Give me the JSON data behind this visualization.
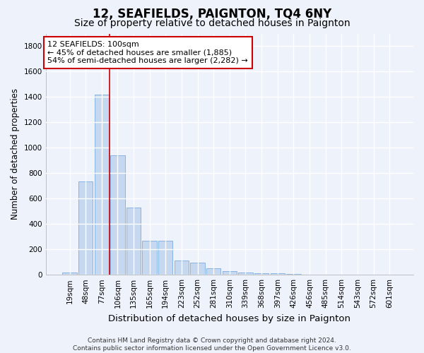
{
  "title": "12, SEAFIELDS, PAIGNTON, TQ4 6NY",
  "subtitle": "Size of property relative to detached houses in Paignton",
  "xlabel": "Distribution of detached houses by size in Paignton",
  "ylabel": "Number of detached properties",
  "categories": [
    "19sqm",
    "48sqm",
    "77sqm",
    "106sqm",
    "135sqm",
    "165sqm",
    "194sqm",
    "223sqm",
    "252sqm",
    "281sqm",
    "310sqm",
    "339sqm",
    "368sqm",
    "397sqm",
    "426sqm",
    "456sqm",
    "485sqm",
    "514sqm",
    "543sqm",
    "572sqm",
    "601sqm"
  ],
  "values": [
    20,
    735,
    1420,
    940,
    530,
    270,
    270,
    110,
    93,
    50,
    27,
    20,
    14,
    14,
    5,
    3,
    2,
    1,
    0,
    0,
    0
  ],
  "bar_color": "#c5d8f0",
  "bar_edge_color": "#7aabe0",
  "vline_x": 2.5,
  "vline_color": "#cc0000",
  "annotation_text": "12 SEAFIELDS: 100sqm\n← 45% of detached houses are smaller (1,885)\n54% of semi-detached houses are larger (2,282) →",
  "annotation_box_color": "white",
  "annotation_box_edge": "#cc0000",
  "ylim": [
    0,
    1900
  ],
  "yticks": [
    0,
    200,
    400,
    600,
    800,
    1000,
    1200,
    1400,
    1600,
    1800
  ],
  "background_color": "#eef2fb",
  "grid_color": "white",
  "footer": "Contains HM Land Registry data © Crown copyright and database right 2024.\nContains public sector information licensed under the Open Government Licence v3.0.",
  "title_fontsize": 12,
  "subtitle_fontsize": 10,
  "xlabel_fontsize": 9.5,
  "ylabel_fontsize": 8.5,
  "tick_fontsize": 7.5,
  "annotation_fontsize": 8,
  "footer_fontsize": 6.5
}
